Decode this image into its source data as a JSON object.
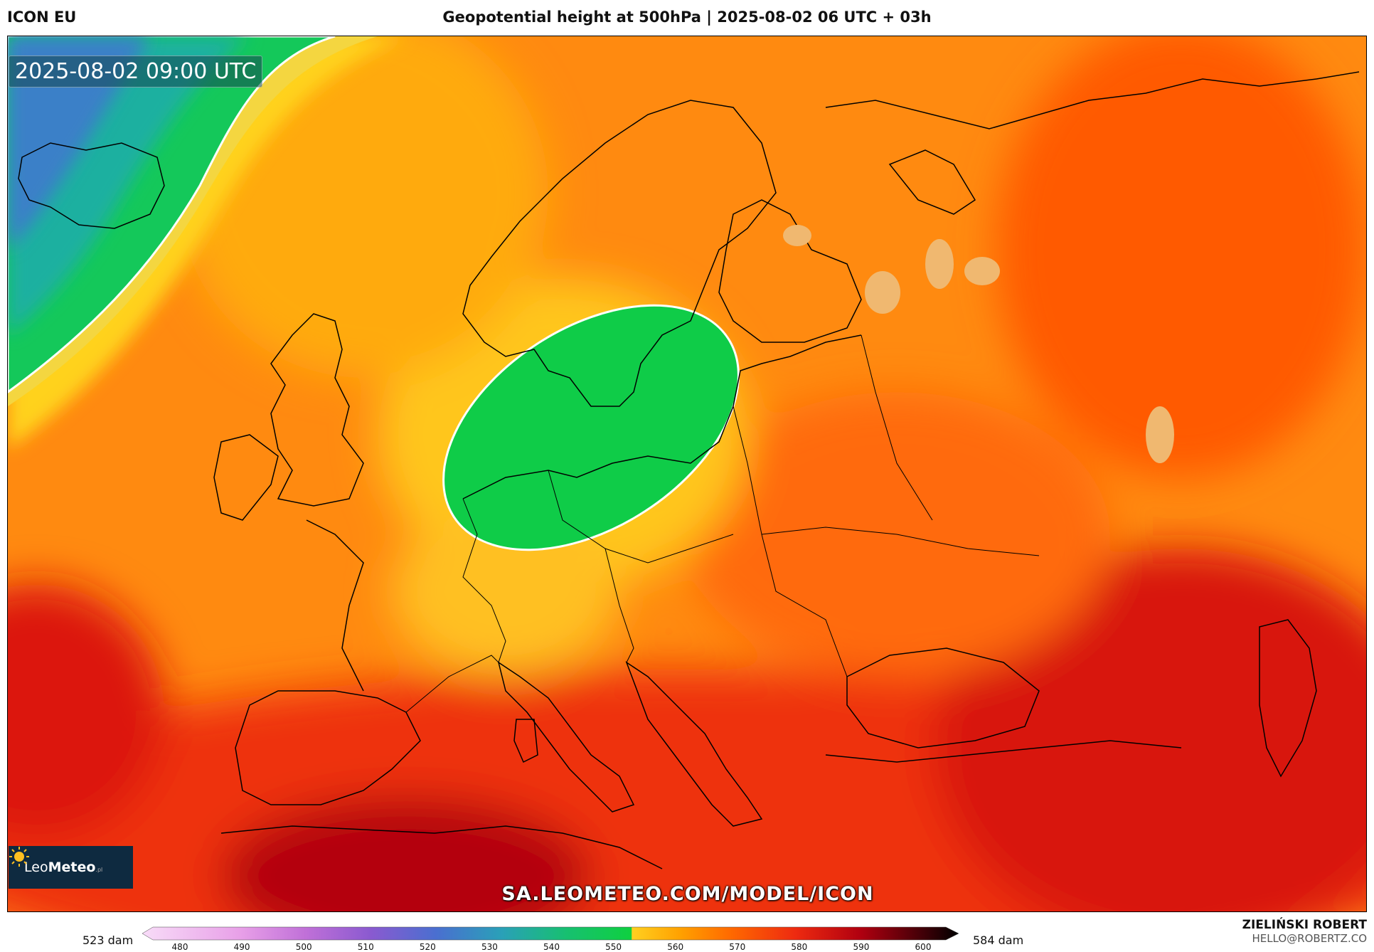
{
  "header": {
    "model": "ICON EU",
    "title": "Geopotential height at 500hPa | 2025-08-02 06 UTC + 03h"
  },
  "map": {
    "timestamp": "2025-08-02 09:00 UTC",
    "watermark": "SA.LEOMETEO.COM/MODEL/ICON",
    "logo": {
      "text_a": "Leo",
      "text_b": "Meteo",
      "text_c": ".pl",
      "icon": "sun-icon"
    }
  },
  "colorbar": {
    "min_label": "523 dam",
    "max_label": "584 dam",
    "ticks": [
      "480",
      "490",
      "500",
      "510",
      "520",
      "530",
      "540",
      "550",
      "560",
      "570",
      "580",
      "590",
      "600"
    ],
    "stops": [
      "#f5d6f5",
      "#e8a0e8",
      "#c070d8",
      "#8a5ad0",
      "#4a6fd0",
      "#2aa0b8",
      "#17c070",
      "#0fd040",
      "#ffd020",
      "#ffa000",
      "#ff6a00",
      "#ee2a10",
      "#b00010",
      "#4a0008",
      "#000000"
    ]
  },
  "author": {
    "name": "ZIELIŃSKI ROBERT",
    "email": "HELLO@ROBERTZ.CO"
  }
}
